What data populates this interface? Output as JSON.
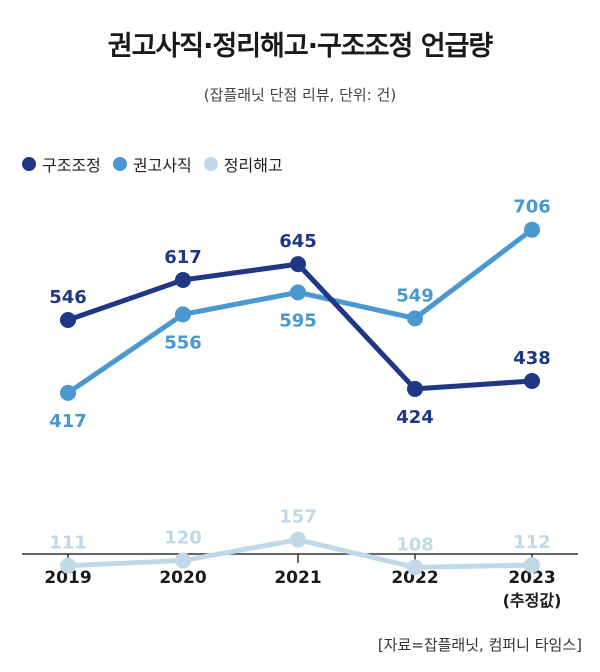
{
  "title": "권고사직·정리해고·구조조정 언급량",
  "subtitle": "(잡플래닛 단점 리뷰, 단위: 건)",
  "source": "[자료=잡플래닛, 컴퍼니 타임스]",
  "chart_data": {
    "type": "line",
    "categories": [
      "2019",
      "2020",
      "2021",
      "2022",
      "2023"
    ],
    "category_sublabels": [
      "",
      "",
      "",
      "",
      "(추정값)"
    ],
    "ylim": [
      0,
      760
    ],
    "grid": false,
    "legend_position": "top-left",
    "series": [
      {
        "name": "구조조정",
        "color": "#1f3784",
        "values": [
          546,
          617,
          645,
          424,
          438
        ],
        "label_pos": [
          "above",
          "above",
          "above",
          "below",
          "above"
        ]
      },
      {
        "name": "권고사직",
        "color": "#4a98d0",
        "values": [
          417,
          556,
          595,
          549,
          706
        ],
        "label_pos": [
          "below",
          "below",
          "below",
          "above",
          "above"
        ]
      },
      {
        "name": "정리해고",
        "color": "#c0d9e9",
        "values": [
          111,
          120,
          157,
          108,
          112
        ],
        "label_pos": [
          "above",
          "above",
          "above",
          "above",
          "above"
        ]
      }
    ]
  }
}
